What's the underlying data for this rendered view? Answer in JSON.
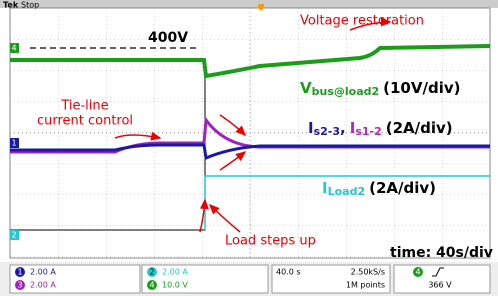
{
  "header": {
    "brand": "Tek",
    "state": "Stop"
  },
  "markers": [
    "4",
    "1",
    "2"
  ],
  "annotations": {
    "reference": "400V",
    "restoration": "Voltage restoration",
    "tieline_1": "Tie-line",
    "tieline_2": "current control",
    "load_steps": "Load steps up",
    "timebase": "time: 40s/div"
  },
  "labels": {
    "vbus": {
      "main": "V",
      "sub": "bus@load2",
      "scale": "(10V/div)"
    },
    "currents": {
      "main1": "I",
      "sub1": "s2-3",
      "sep": ",",
      "main2": "I",
      "sub2": "s1-2",
      "scale": "(2A/div)"
    },
    "iload": {
      "main": "I",
      "sub": "Load2",
      "scale": "(2A/div)"
    }
  },
  "status": {
    "channels": [
      {
        "id": "1",
        "scale": "2.00 A"
      },
      {
        "id": "3",
        "scale": "2.00 A"
      },
      {
        "id": "2",
        "scale": "2.00 A"
      },
      {
        "id": "4",
        "scale": "10.0 V"
      }
    ],
    "time": "40.0 s",
    "rate": "2.50kS/s",
    "points": "1M points",
    "trigger_ch": "4",
    "trigger_level": "366 V"
  }
}
